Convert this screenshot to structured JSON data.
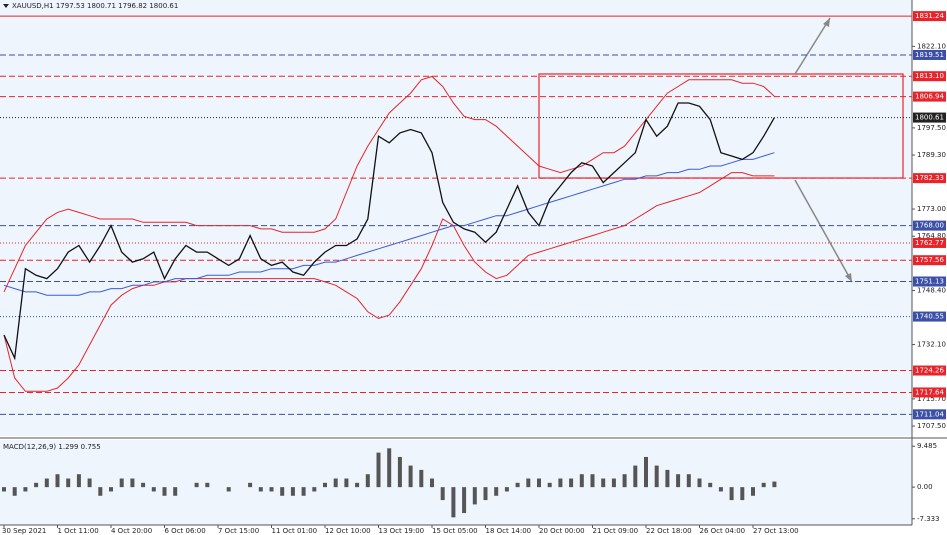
{
  "chart_data": [
    {
      "type": "line",
      "title": "XAUUSD,H1  1797.53 1800.71 1796.82 1800.61",
      "categories": [
        "30 Sep 2021",
        null,
        null,
        null,
        null,
        "1 Oct 11:00",
        null,
        null,
        null,
        null,
        "4 Oct 20:00",
        null,
        null,
        null,
        null,
        "6 Oct 06:00",
        null,
        null,
        null,
        null,
        "7 Oct 15:00",
        null,
        null,
        null,
        null,
        "11 Oct 01:00",
        null,
        null,
        null,
        null,
        "12 Oct 10:00",
        null,
        null,
        null,
        null,
        "13 Oct 19:00",
        null,
        null,
        null,
        null,
        "15 Oct 05:00",
        null,
        null,
        null,
        null,
        "18 Oct 14:00",
        null,
        null,
        null,
        null,
        "20 Oct 00:00",
        null,
        null,
        null,
        null,
        "21 Oct 09:00",
        null,
        null,
        null,
        null,
        "22 Oct 18:00",
        null,
        null,
        null,
        null,
        "26 Oct 04:00",
        null,
        null,
        null,
        null,
        "27 Oct 13:00",
        null,
        null
      ],
      "series": [
        {
          "color": "#e8242b",
          "values": [
            1748,
            1755,
            1762,
            1766,
            1770,
            1772,
            1773,
            1772,
            1771,
            1770,
            1770,
            1770,
            1770,
            1769,
            1769,
            1769,
            1769,
            1769,
            1768,
            1768,
            1768,
            1768,
            1768,
            1768,
            1767,
            1767,
            1766,
            1766,
            1766,
            1766,
            1767,
            1770,
            1778,
            1786,
            1792,
            1797,
            1802,
            1805,
            1808,
            1812,
            1813,
            1810,
            1805,
            1801,
            1800,
            1800,
            1798,
            1795,
            1792,
            1789,
            1786,
            1785,
            1784,
            1785,
            1786,
            1788,
            1790,
            1790,
            1792,
            1796,
            1800,
            1804,
            1808,
            1810,
            1812,
            1812,
            1812,
            1812,
            1812,
            1811,
            1811,
            1810,
            1807
          ]
        },
        {
          "color": "#e8242b",
          "values": [
            1735,
            1722,
            1718,
            1718,
            1718,
            1719,
            1722,
            1726,
            1732,
            1738,
            1744,
            1747,
            1749,
            1750,
            1750,
            1751,
            1751,
            1752,
            1752,
            1752,
            1752,
            1752,
            1752,
            1752,
            1752,
            1752,
            1752,
            1752,
            1752,
            1752,
            1751,
            1750,
            1748,
            1746,
            1742,
            1740,
            1741,
            1745,
            1750,
            1755,
            1762,
            1770,
            1768,
            1762,
            1757,
            1754,
            1752,
            1753,
            1756,
            1759,
            1760,
            1761,
            1762,
            1763,
            1764,
            1765,
            1766,
            1767,
            1768,
            1770,
            1772,
            1774,
            1775,
            1776,
            1777,
            1778,
            1780,
            1782,
            1784,
            1784,
            1783,
            1783,
            1783
          ]
        },
        {
          "color": "#3b5bdb",
          "values": [
            1750,
            1749,
            1748,
            1748,
            1747,
            1747,
            1747,
            1747,
            1748,
            1748,
            1749,
            1749,
            1750,
            1750,
            1751,
            1751,
            1752,
            1752,
            1752,
            1753,
            1753,
            1753,
            1754,
            1754,
            1754,
            1755,
            1755,
            1755,
            1756,
            1756,
            1757,
            1757,
            1758,
            1759,
            1760,
            1761,
            1762,
            1763,
            1764,
            1765,
            1766,
            1767,
            1768,
            1768,
            1769,
            1770,
            1771,
            1771,
            1772,
            1773,
            1774,
            1775,
            1776,
            1777,
            1778,
            1779,
            1780,
            1781,
            1782,
            1782,
            1783,
            1783,
            1784,
            1784,
            1785,
            1785,
            1786,
            1786,
            1787,
            1788,
            1788,
            1789,
            1790
          ]
        },
        {
          "color": "#111111",
          "values": [
            1735,
            1728,
            1755,
            1753,
            1752,
            1755,
            1760,
            1762,
            1757,
            1762,
            1768,
            1760,
            1757,
            1758,
            1760,
            1752,
            1758,
            1762,
            1760,
            1760,
            1758,
            1756,
            1758,
            1765,
            1758,
            1756,
            1757,
            1754,
            1753,
            1757,
            1760,
            1762,
            1762,
            1764,
            1770,
            1795,
            1793,
            1796,
            1797,
            1796,
            1790,
            1775,
            1769,
            1767,
            1766,
            1763,
            1766,
            1773,
            1780,
            1772,
            1768,
            1776,
            1780,
            1784,
            1787,
            1786,
            1781,
            1784,
            1787,
            1790,
            1800,
            1795,
            1798,
            1805,
            1805,
            1804,
            1800,
            1790,
            1789,
            1788,
            1790,
            1795,
            1800.61
          ]
        }
      ],
      "ylim": [
        1704.5,
        1836.1
      ],
      "yticks": [
        {
          "value": 1822.1,
          "label": "1822.10"
        },
        {
          "value": 1797.5,
          "label": "1797.50"
        },
        {
          "value": 1789.3,
          "label": "1789.30"
        },
        {
          "value": 1773.0,
          "label": "1773.00"
        },
        {
          "value": 1764.8,
          "label": "1764.80"
        },
        {
          "value": 1748.4,
          "label": "1748.40"
        },
        {
          "value": 1732.1,
          "label": "1732.10"
        },
        {
          "value": 1715.7,
          "label": "1715.70"
        },
        {
          "value": 1707.5,
          "label": "1707.50"
        }
      ],
      "levels": [
        {
          "value": 1831.24,
          "label": "1831.24",
          "color": "#e8242b",
          "style": "solid"
        },
        {
          "value": 1819.51,
          "label": "1819.51",
          "color": "#3b4fa8",
          "style": "dashed"
        },
        {
          "value": 1813.1,
          "label": "1813.10",
          "color": "#e8242b",
          "style": "dashed"
        },
        {
          "value": 1806.94,
          "label": "1806.94",
          "color": "#e8242b",
          "style": "dashed"
        },
        {
          "value": 1800.61,
          "label": "1800.61",
          "color": "#222222",
          "style": "dotted"
        },
        {
          "value": 1782.33,
          "label": "1782.33",
          "color": "#e8242b",
          "style": "dashed"
        },
        {
          "value": 1768.0,
          "label": "1768.00",
          "color": "#3b4fa8",
          "style": "dashed"
        },
        {
          "value": 1762.77,
          "label": "1762.77",
          "color": "#e8242b",
          "style": "dotted"
        },
        {
          "value": 1757.56,
          "label": "1757.56",
          "color": "#e8242b",
          "style": "dashed"
        },
        {
          "value": 1751.13,
          "label": "1751.13",
          "color": "#3b4fa8",
          "style": "dashed"
        },
        {
          "value": 1740.55,
          "label": "1740.55",
          "color": "#3b4fa8",
          "style": "dotted"
        },
        {
          "value": 1724.26,
          "label": "1724.26",
          "color": "#e8242b",
          "style": "dashed"
        },
        {
          "value": 1717.64,
          "label": "1717.64",
          "color": "#e8242b",
          "style": "dashed"
        },
        {
          "value": 1711.04,
          "label": "1711.04",
          "color": "#3b4fa8",
          "style": "dashed"
        }
      ]
    },
    {
      "type": "bar",
      "title": "MACD(12,26,9) 1.299 0.755",
      "color": "#555555",
      "values": [
        -1,
        -2,
        -1,
        1,
        2,
        3,
        2,
        3,
        2,
        -2,
        -1,
        2,
        2,
        1,
        -1,
        -2,
        -2,
        0,
        1,
        1,
        0,
        -1,
        0,
        1,
        -1,
        -1,
        -2,
        -2,
        -2,
        -1,
        1,
        2,
        2,
        1,
        3,
        8,
        9,
        7,
        5,
        4,
        2,
        -3,
        -7,
        -6,
        -4,
        -3,
        -2,
        -1,
        1,
        2,
        2,
        1,
        2,
        2,
        3,
        3,
        2,
        2,
        3,
        5,
        7,
        5,
        4,
        3,
        3,
        2,
        1,
        -1,
        -3,
        -3,
        -2,
        1,
        1.299
      ],
      "ylim": [
        -8.775,
        10.93
      ],
      "yticks": [
        9.485,
        {
          "value": 0,
          "label": "0.00"
        },
        -7.333
      ]
    }
  ]
}
